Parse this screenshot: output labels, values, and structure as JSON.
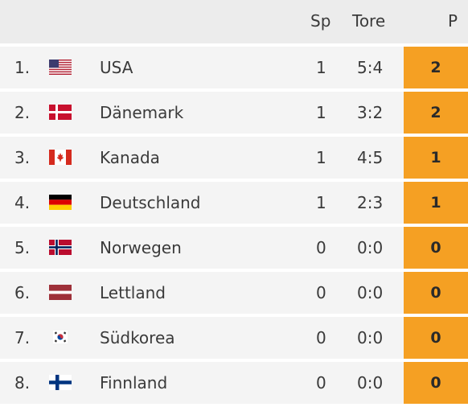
{
  "header": {
    "sp": "Sp",
    "tore": "Tore",
    "p": "P"
  },
  "rows": [
    {
      "rank": "1.",
      "team": "USA",
      "sp": "1",
      "tore": "5:4",
      "points": "2",
      "flag": "usa-flag-icon"
    },
    {
      "rank": "2.",
      "team": "Dänemark",
      "sp": "1",
      "tore": "3:2",
      "points": "2",
      "flag": "denmark-flag-icon"
    },
    {
      "rank": "3.",
      "team": "Kanada",
      "sp": "1",
      "tore": "4:5",
      "points": "1",
      "flag": "canada-flag-icon"
    },
    {
      "rank": "4.",
      "team": "Deutschland",
      "sp": "1",
      "tore": "2:3",
      "points": "1",
      "flag": "germany-flag-icon"
    },
    {
      "rank": "5.",
      "team": "Norwegen",
      "sp": "0",
      "tore": "0:0",
      "points": "0",
      "flag": "norway-flag-icon"
    },
    {
      "rank": "6.",
      "team": "Lettland",
      "sp": "0",
      "tore": "0:0",
      "points": "0",
      "flag": "latvia-flag-icon"
    },
    {
      "rank": "7.",
      "team": "Südkorea",
      "sp": "0",
      "tore": "0:0",
      "points": "0",
      "flag": "south-korea-flag-icon"
    },
    {
      "rank": "8.",
      "team": "Finnland",
      "sp": "0",
      "tore": "0:0",
      "points": "0",
      "flag": "finland-flag-icon"
    }
  ],
  "colors": {
    "accent": "#f5a023",
    "row_bg": "#f4f4f4",
    "header_bg": "#ececec"
  }
}
